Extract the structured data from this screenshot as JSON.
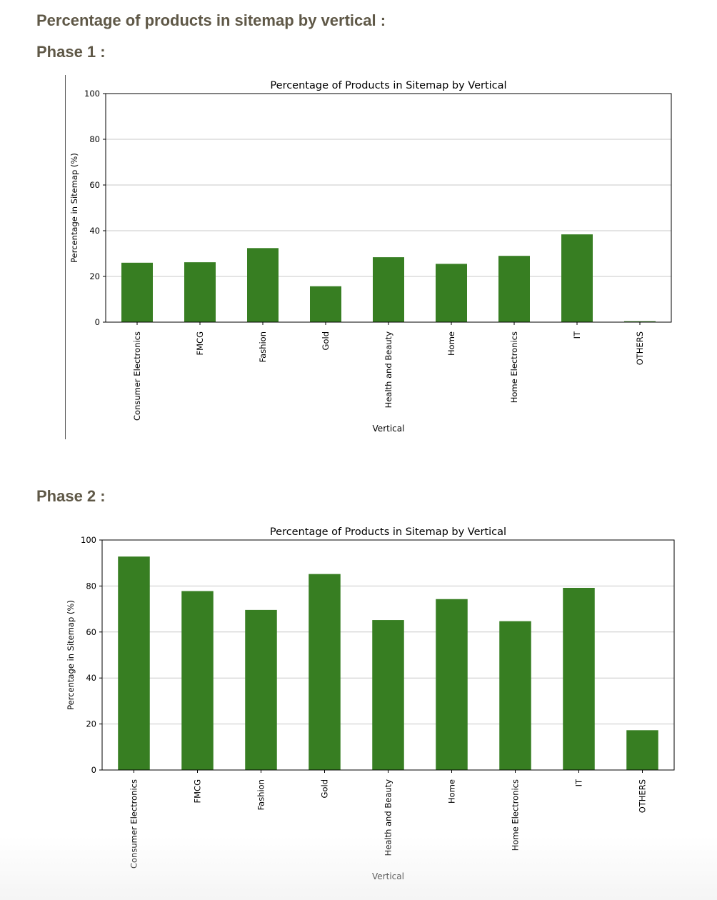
{
  "page": {
    "heading": "Percentage of products in sitemap by vertical :",
    "phase1_label": "Phase 1 :",
    "phase2_label": "Phase 2 :"
  },
  "colors": {
    "bar": "#377e22",
    "heading": "#5f5847",
    "grid": "#c8c8c8"
  },
  "chart_data": [
    {
      "type": "bar",
      "title": "Percentage of Products in Sitemap by Vertical",
      "xlabel": "Vertical",
      "ylabel": "Percentage in Sitemap (%)",
      "ylim": [
        0,
        100
      ],
      "yticks": [
        0,
        20,
        40,
        60,
        80,
        100
      ],
      "grid": true,
      "categories": [
        "Consumer Electronics",
        "FMCG",
        "Fashion",
        "Gold",
        "Health and Beauty",
        "Home",
        "Home Electronics",
        "IT",
        "OTHERS"
      ],
      "values": [
        26,
        26.2,
        32.4,
        15.7,
        28.4,
        25.5,
        29,
        38.4,
        0.4
      ]
    },
    {
      "type": "bar",
      "title": "Percentage of Products in Sitemap by Vertical",
      "xlabel": "Vertical",
      "ylabel": "Percentage in Sitemap (%)",
      "ylim": [
        0,
        100
      ],
      "yticks": [
        0,
        20,
        40,
        60,
        80,
        100
      ],
      "grid": true,
      "categories": [
        "Consumer Electronics",
        "FMCG",
        "Fashion",
        "Gold",
        "Health and Beauty",
        "Home",
        "Home Electronics",
        "IT",
        "OTHERS"
      ],
      "values": [
        92.8,
        77.8,
        69.6,
        85.2,
        65.2,
        74.3,
        64.7,
        79.2,
        17.3
      ]
    }
  ]
}
